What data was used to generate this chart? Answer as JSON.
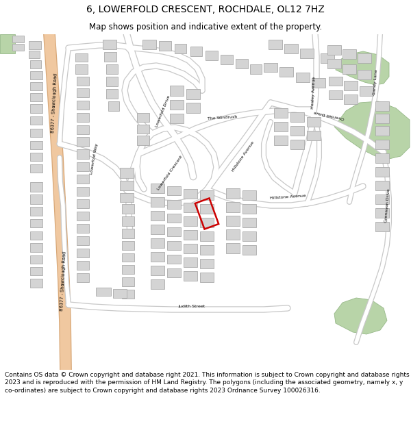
{
  "title": "6, LOWERFOLD CRESCENT, ROCHDALE, OL12 7HZ",
  "subtitle": "Map shows position and indicative extent of the property.",
  "footer": "Contains OS data © Crown copyright and database right 2021. This information is subject to Crown copyright and database rights 2023 and is reproduced with the permission of HM Land Registry. The polygons (including the associated geometry, namely x, y co-ordinates) are subject to Crown copyright and database rights 2023 Ordnance Survey 100026316.",
  "map_bg": "#f2f2f2",
  "road_color": "#ffffff",
  "road_outline_color": "#c8c8c8",
  "major_road_fill": "#f0c8a0",
  "major_road_outline": "#d8a878",
  "building_color": "#d4d4d4",
  "building_outline": "#aaaaaa",
  "green_color": "#b8d4a8",
  "green_outline": "#96b888",
  "highlight_color": "#cc0000",
  "title_fontsize": 10,
  "subtitle_fontsize": 8.5,
  "footer_fontsize": 6.5
}
